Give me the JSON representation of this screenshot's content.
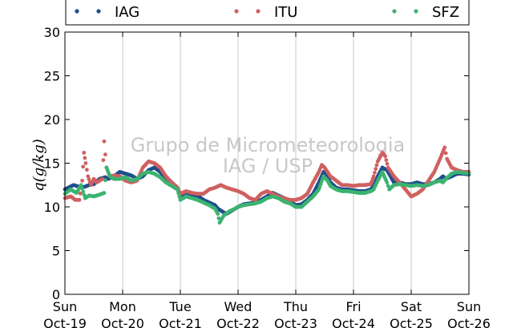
{
  "chart_data": {
    "type": "scatter",
    "ylabel": "q(g/kg)",
    "ylim": [
      0,
      30
    ],
    "yticks": [
      0,
      5,
      10,
      15,
      20,
      25,
      30
    ],
    "xlim": [
      0,
      7
    ],
    "xticks": [
      {
        "x": 0,
        "day": "Sun",
        "date": "Oct-19"
      },
      {
        "x": 1,
        "day": "Mon",
        "date": "Oct-20"
      },
      {
        "x": 2,
        "day": "Tue",
        "date": "Oct-21"
      },
      {
        "x": 3,
        "day": "Wed",
        "date": "Oct-22"
      },
      {
        "x": 4,
        "day": "Thu",
        "date": "Oct-23"
      },
      {
        "x": 5,
        "day": "Fri",
        "date": "Oct-24"
      },
      {
        "x": 6,
        "day": "Sat",
        "date": "Oct-25"
      },
      {
        "x": 7,
        "day": "Sun",
        "date": "Oct-26"
      }
    ],
    "grid": "vertical",
    "legend_position": "top",
    "watermark": [
      "Grupo de Micrometeorologia",
      "IAG / USP"
    ],
    "series": [
      {
        "name": "IAG",
        "color": "#1f4e8c",
        "points": [
          [
            0,
            12.0
          ],
          [
            0.15,
            12.5
          ],
          [
            0.3,
            12.2
          ],
          [
            0.42,
            12.5
          ],
          [
            0.5,
            12.6
          ],
          [
            0.6,
            13.2
          ],
          [
            0.7,
            13.4
          ],
          [
            0.75,
            13.2
          ],
          [
            0.85,
            13.5
          ],
          [
            0.95,
            14.0
          ],
          [
            1.05,
            13.8
          ],
          [
            1.15,
            13.6
          ],
          [
            1.25,
            13.2
          ],
          [
            1.35,
            13.5
          ],
          [
            1.45,
            14.2
          ],
          [
            1.55,
            14.5
          ],
          [
            1.65,
            14.0
          ],
          [
            1.75,
            13.2
          ],
          [
            1.85,
            12.8
          ],
          [
            1.95,
            12.2
          ],
          [
            2.0,
            11.0
          ],
          [
            2.1,
            11.5
          ],
          [
            2.2,
            11.2
          ],
          [
            2.3,
            11.3
          ],
          [
            2.4,
            10.8
          ],
          [
            2.5,
            10.5
          ],
          [
            2.6,
            10.2
          ],
          [
            2.65,
            9.8
          ],
          [
            2.72,
            9.5
          ],
          [
            2.8,
            9.2
          ],
          [
            2.9,
            9.6
          ],
          [
            3.0,
            10.0
          ],
          [
            3.1,
            10.3
          ],
          [
            3.2,
            10.4
          ],
          [
            3.3,
            10.5
          ],
          [
            3.4,
            10.8
          ],
          [
            3.5,
            11.2
          ],
          [
            3.6,
            11.6
          ],
          [
            3.7,
            11.3
          ],
          [
            3.8,
            11.0
          ],
          [
            3.9,
            10.6
          ],
          [
            4.0,
            10.2
          ],
          [
            4.1,
            10.3
          ],
          [
            4.2,
            10.8
          ],
          [
            4.3,
            11.5
          ],
          [
            4.4,
            12.8
          ],
          [
            4.48,
            14.0
          ],
          [
            4.55,
            13.5
          ],
          [
            4.6,
            12.8
          ],
          [
            4.7,
            12.2
          ],
          [
            4.8,
            12.0
          ],
          [
            4.9,
            12.0
          ],
          [
            5.0,
            11.9
          ],
          [
            5.1,
            11.8
          ],
          [
            5.2,
            11.8
          ],
          [
            5.3,
            12.0
          ],
          [
            5.35,
            12.4
          ],
          [
            5.42,
            13.5
          ],
          [
            5.5,
            14.5
          ],
          [
            5.58,
            14.2
          ],
          [
            5.65,
            13.4
          ],
          [
            5.7,
            12.8
          ],
          [
            5.8,
            12.8
          ],
          [
            5.9,
            12.6
          ],
          [
            6.0,
            12.6
          ],
          [
            6.1,
            12.8
          ],
          [
            6.2,
            12.6
          ],
          [
            6.3,
            12.6
          ],
          [
            6.4,
            12.8
          ],
          [
            6.5,
            13.2
          ],
          [
            6.55,
            13.5
          ],
          [
            6.6,
            13.2
          ],
          [
            6.7,
            13.5
          ],
          [
            6.8,
            13.8
          ],
          [
            6.9,
            13.8
          ],
          [
            7.0,
            13.7
          ]
        ]
      },
      {
        "name": "ITU",
        "color": "#d06060",
        "points": [
          [
            0,
            11.0
          ],
          [
            0.1,
            11.2
          ],
          [
            0.18,
            10.8
          ],
          [
            0.25,
            10.8
          ],
          [
            0.3,
            13.0
          ],
          [
            0.33,
            16.2
          ],
          [
            0.36,
            15.0
          ],
          [
            0.4,
            13.5
          ],
          [
            0.45,
            12.5
          ],
          [
            0.5,
            13.2
          ],
          [
            0.55,
            12.8
          ],
          [
            0.6,
            13.0
          ],
          [
            0.65,
            13.2
          ],
          [
            0.68,
            17.5
          ],
          [
            0.72,
            14.5
          ],
          [
            0.78,
            13.5
          ],
          [
            0.85,
            13.6
          ],
          [
            0.95,
            13.5
          ],
          [
            1.05,
            13.0
          ],
          [
            1.15,
            12.8
          ],
          [
            1.25,
            13.0
          ],
          [
            1.35,
            14.5
          ],
          [
            1.45,
            15.2
          ],
          [
            1.55,
            15.0
          ],
          [
            1.65,
            14.5
          ],
          [
            1.75,
            13.5
          ],
          [
            1.85,
            12.8
          ],
          [
            1.95,
            12.2
          ],
          [
            2.0,
            11.5
          ],
          [
            2.1,
            11.8
          ],
          [
            2.2,
            11.6
          ],
          [
            2.3,
            11.5
          ],
          [
            2.4,
            11.5
          ],
          [
            2.5,
            12.0
          ],
          [
            2.6,
            12.2
          ],
          [
            2.7,
            12.5
          ],
          [
            2.8,
            12.2
          ],
          [
            2.9,
            12.0
          ],
          [
            3.0,
            11.8
          ],
          [
            3.1,
            11.5
          ],
          [
            3.2,
            11.0
          ],
          [
            3.3,
            10.8
          ],
          [
            3.4,
            11.5
          ],
          [
            3.5,
            11.8
          ],
          [
            3.6,
            11.5
          ],
          [
            3.7,
            11.2
          ],
          [
            3.8,
            11.0
          ],
          [
            3.9,
            10.8
          ],
          [
            4.0,
            10.8
          ],
          [
            4.1,
            11.0
          ],
          [
            4.2,
            11.5
          ],
          [
            4.3,
            12.8
          ],
          [
            4.4,
            14.0
          ],
          [
            4.45,
            14.8
          ],
          [
            4.5,
            14.5
          ],
          [
            4.6,
            13.5
          ],
          [
            4.7,
            13.0
          ],
          [
            4.8,
            12.5
          ],
          [
            4.9,
            12.5
          ],
          [
            5.0,
            12.4
          ],
          [
            5.1,
            12.5
          ],
          [
            5.2,
            12.5
          ],
          [
            5.3,
            12.6
          ],
          [
            5.35,
            13.5
          ],
          [
            5.42,
            15.2
          ],
          [
            5.5,
            16.2
          ],
          [
            5.55,
            15.8
          ],
          [
            5.6,
            14.5
          ],
          [
            5.7,
            13.5
          ],
          [
            5.8,
            12.8
          ],
          [
            5.9,
            12.0
          ],
          [
            6.0,
            11.2
          ],
          [
            6.1,
            11.5
          ],
          [
            6.2,
            12.0
          ],
          [
            6.3,
            13.0
          ],
          [
            6.4,
            14.0
          ],
          [
            6.5,
            15.5
          ],
          [
            6.58,
            16.8
          ],
          [
            6.62,
            15.5
          ],
          [
            6.7,
            14.5
          ],
          [
            6.8,
            14.2
          ],
          [
            6.9,
            14.0
          ],
          [
            7.0,
            14.0
          ]
        ]
      },
      {
        "name": "SFZ",
        "color": "#3cb371",
        "points": [
          [
            0,
            11.5
          ],
          [
            0.1,
            12.0
          ],
          [
            0.2,
            11.6
          ],
          [
            0.28,
            12.5
          ],
          [
            0.35,
            11.0
          ],
          [
            0.42,
            11.3
          ],
          [
            0.5,
            11.2
          ],
          [
            0.6,
            11.4
          ],
          [
            0.68,
            11.6
          ],
          [
            0.72,
            14.5
          ],
          [
            0.78,
            13.5
          ],
          [
            0.85,
            13.2
          ],
          [
            0.95,
            13.2
          ],
          [
            1.05,
            13.4
          ],
          [
            1.15,
            13.0
          ],
          [
            1.25,
            13.2
          ],
          [
            1.35,
            13.8
          ],
          [
            1.45,
            14.0
          ],
          [
            1.55,
            13.8
          ],
          [
            1.65,
            13.4
          ],
          [
            1.75,
            12.8
          ],
          [
            1.85,
            12.4
          ],
          [
            1.95,
            12.0
          ],
          [
            2.0,
            10.8
          ],
          [
            2.1,
            11.2
          ],
          [
            2.2,
            11.0
          ],
          [
            2.3,
            10.8
          ],
          [
            2.4,
            10.5
          ],
          [
            2.5,
            10.2
          ],
          [
            2.6,
            9.8
          ],
          [
            2.65,
            9.2
          ],
          [
            2.68,
            8.2
          ],
          [
            2.75,
            9.0
          ],
          [
            2.85,
            9.5
          ],
          [
            2.95,
            9.8
          ],
          [
            3.0,
            10.0
          ],
          [
            3.1,
            10.2
          ],
          [
            3.2,
            10.3
          ],
          [
            3.3,
            10.4
          ],
          [
            3.4,
            10.6
          ],
          [
            3.5,
            11.0
          ],
          [
            3.6,
            11.2
          ],
          [
            3.7,
            11.0
          ],
          [
            3.8,
            10.6
          ],
          [
            3.9,
            10.4
          ],
          [
            4.0,
            10.0
          ],
          [
            4.1,
            10.0
          ],
          [
            4.2,
            10.6
          ],
          [
            4.3,
            11.2
          ],
          [
            4.4,
            12.0
          ],
          [
            4.48,
            13.5
          ],
          [
            4.55,
            13.0
          ],
          [
            4.6,
            12.4
          ],
          [
            4.7,
            12.0
          ],
          [
            4.8,
            11.8
          ],
          [
            4.9,
            11.8
          ],
          [
            5.0,
            11.7
          ],
          [
            5.1,
            11.6
          ],
          [
            5.2,
            11.6
          ],
          [
            5.3,
            11.8
          ],
          [
            5.35,
            12.0
          ],
          [
            5.42,
            13.0
          ],
          [
            5.5,
            14.0
          ],
          [
            5.58,
            12.8
          ],
          [
            5.62,
            12.0
          ],
          [
            5.7,
            12.5
          ],
          [
            5.8,
            12.6
          ],
          [
            5.9,
            12.5
          ],
          [
            6.0,
            12.4
          ],
          [
            6.1,
            12.5
          ],
          [
            6.2,
            12.4
          ],
          [
            6.3,
            12.5
          ],
          [
            6.4,
            12.8
          ],
          [
            6.5,
            13.0
          ],
          [
            6.55,
            12.8
          ],
          [
            6.6,
            13.2
          ],
          [
            6.7,
            13.8
          ],
          [
            6.8,
            14.0
          ],
          [
            6.9,
            13.9
          ],
          [
            7.0,
            13.8
          ]
        ]
      }
    ]
  }
}
